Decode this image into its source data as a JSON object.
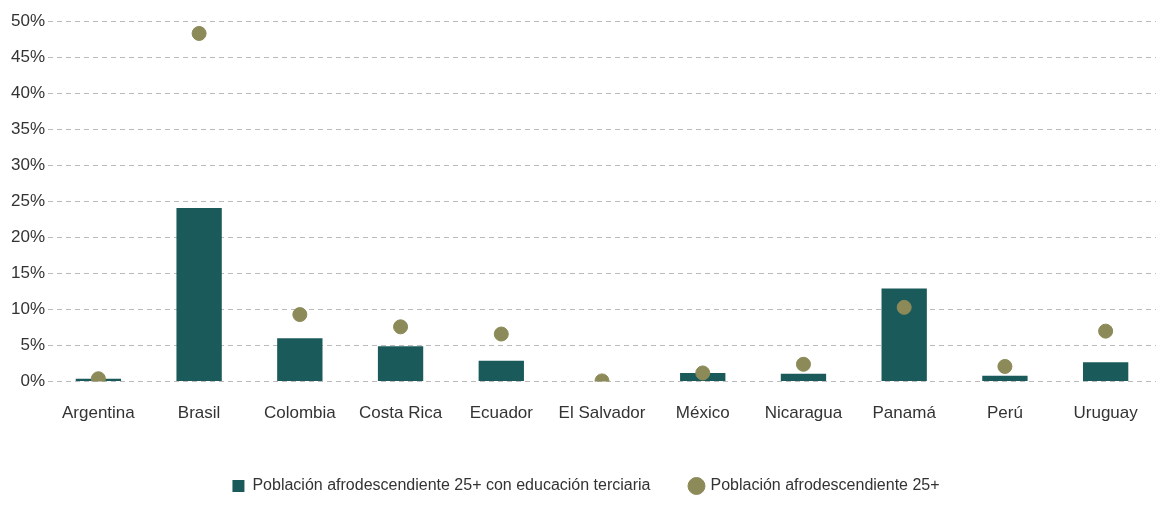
{
  "chart_data": {
    "type": "bar",
    "categories": [
      "Argentina",
      "Brasil",
      "Colombia",
      "Costa Rica",
      "Ecuador",
      "El Salvador",
      "México",
      "Nicaragua",
      "Panamá",
      "Perú",
      "Uruguay"
    ],
    "series": [
      {
        "name": "Población afrodescendiente 25+ con educación terciaria",
        "color": "#1a5a5a",
        "values": [
          0.4,
          24.1,
          6.0,
          4.9,
          2.9,
          0.1,
          1.2,
          1.1,
          12.9,
          0.8,
          2.7
        ]
      },
      {
        "name": "Población afrodescendiente 25+",
        "type": "scatter",
        "color": "#8c8a58",
        "values": [
          0.4,
          48.3,
          9.3,
          7.6,
          6.6,
          0.1,
          1.2,
          2.4,
          10.3,
          2.1,
          7.0
        ]
      }
    ],
    "ylim": [
      0,
      50
    ],
    "yticks": [
      {
        "value": 0,
        "label": "0%"
      },
      {
        "value": 5,
        "label": "5%"
      },
      {
        "value": 10,
        "label": "10%"
      },
      {
        "value": 15,
        "label": "15%"
      },
      {
        "value": 20,
        "label": "20%"
      },
      {
        "value": 25,
        "label": "25%"
      },
      {
        "value": 30,
        "label": "30%"
      },
      {
        "value": 35,
        "label": "35%"
      },
      {
        "value": 40,
        "label": "40%"
      },
      {
        "value": 45,
        "label": "45%"
      },
      {
        "value": 50,
        "label": "50%"
      }
    ],
    "grid": "y",
    "legend": "bottom",
    "marker": "circle"
  }
}
